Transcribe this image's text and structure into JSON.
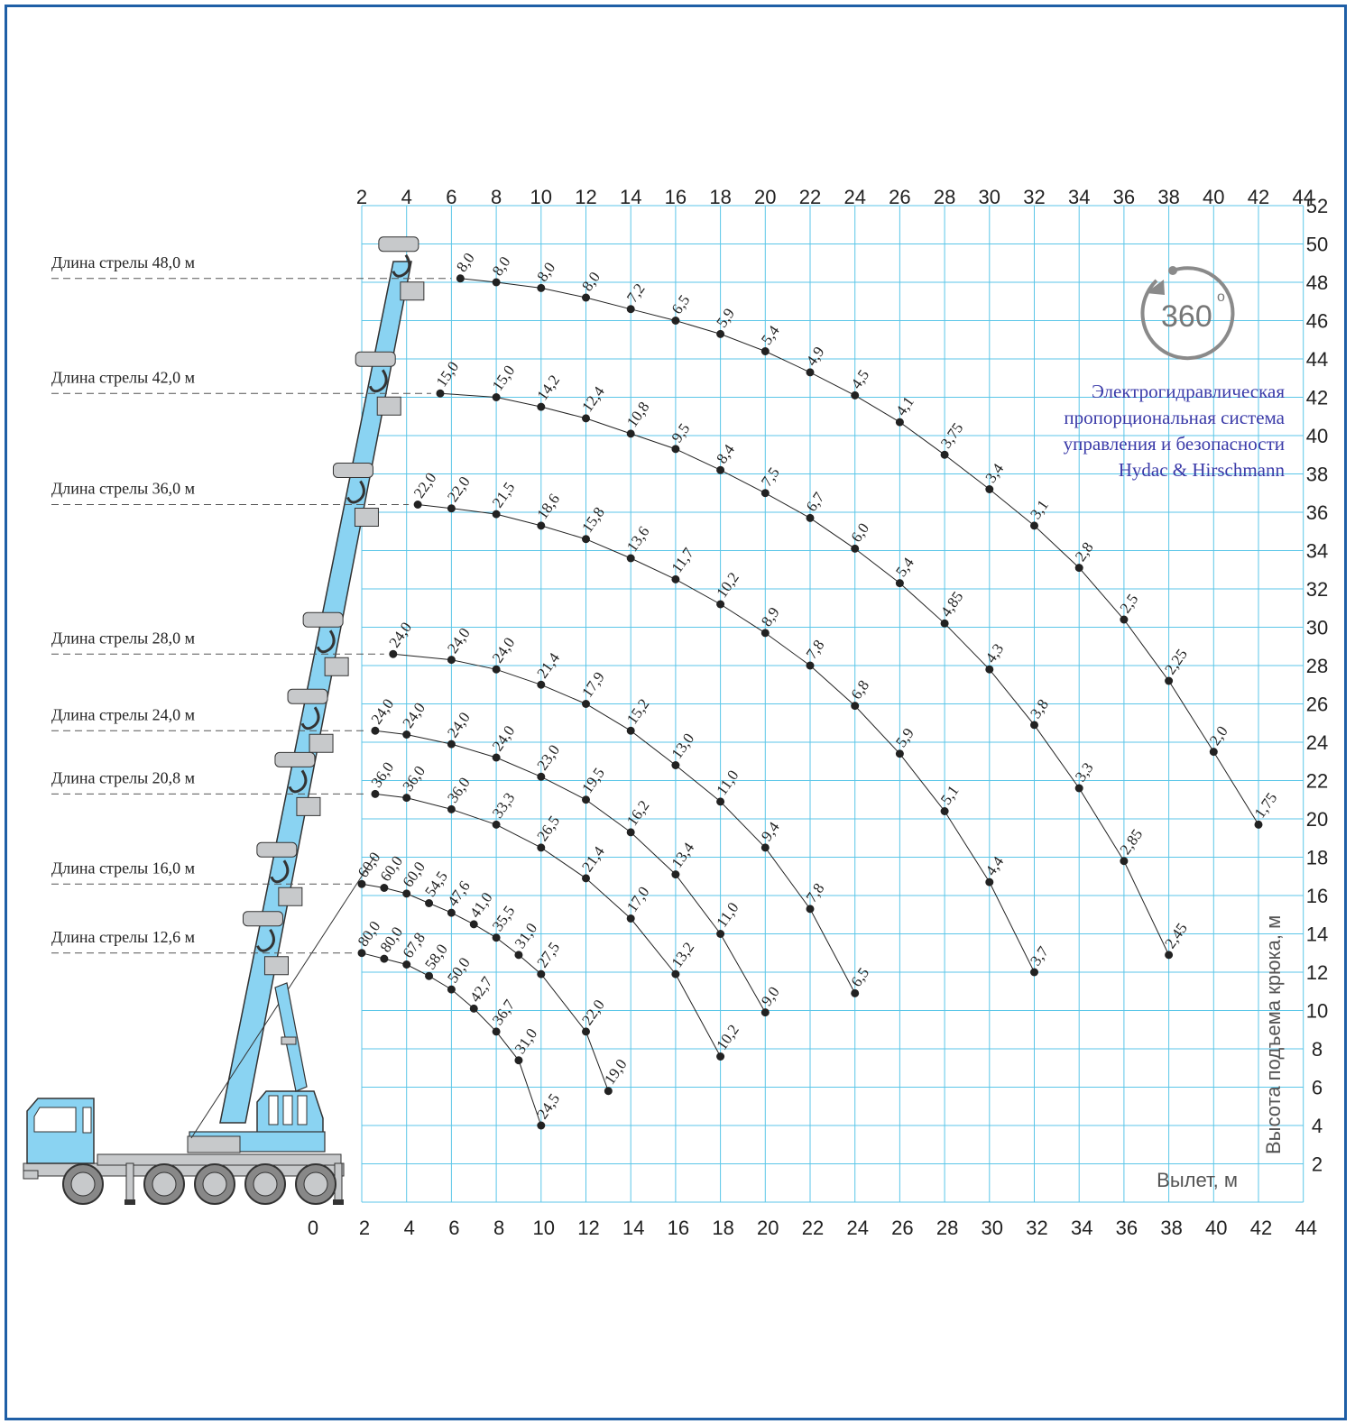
{
  "chart_data": {
    "type": "line",
    "title": "",
    "xlabel": "Вылет, м",
    "ylabel": "Высота подъема крюка, м",
    "xlim": [
      2,
      44
    ],
    "ylim": [
      0,
      52
    ],
    "x_ticks_top": [
      2,
      4,
      6,
      8,
      10,
      12,
      14,
      16,
      18,
      20,
      22,
      24,
      26,
      28,
      30,
      32,
      34,
      36,
      38,
      40,
      42,
      44
    ],
    "x_ticks_bottom": [
      0,
      2,
      4,
      6,
      8,
      10,
      12,
      14,
      16,
      18,
      20,
      22,
      24,
      26,
      28,
      30,
      32,
      34,
      36,
      38,
      40,
      42,
      44
    ],
    "y_ticks": [
      2,
      4,
      6,
      8,
      10,
      12,
      14,
      16,
      18,
      20,
      22,
      24,
      26,
      28,
      30,
      32,
      34,
      36,
      38,
      40,
      42,
      44,
      46,
      48,
      50,
      52
    ],
    "grid": true,
    "series": [
      {
        "name": "Длина стрелы 48,0 м",
        "points": [
          [
            6.4,
            48.2,
            "8,0"
          ],
          [
            8,
            48,
            "8,0"
          ],
          [
            10,
            47.7,
            "8,0"
          ],
          [
            12,
            47.2,
            "8,0"
          ],
          [
            14,
            46.6,
            "7,2"
          ],
          [
            16,
            46,
            "6,5"
          ],
          [
            18,
            45.3,
            "5,9"
          ],
          [
            20,
            44.4,
            "5,4"
          ],
          [
            22,
            43.3,
            "4,9"
          ],
          [
            24,
            42.1,
            "4,5"
          ],
          [
            26,
            40.7,
            "4,1"
          ],
          [
            28,
            39,
            "3,75"
          ],
          [
            30,
            37.2,
            "3,4"
          ],
          [
            32,
            35.3,
            "3,1"
          ],
          [
            34,
            33.1,
            "2,8"
          ],
          [
            36,
            30.4,
            "2,5"
          ],
          [
            38,
            27.2,
            "2,25"
          ],
          [
            40,
            23.5,
            "2,0"
          ],
          [
            42,
            19.7,
            "1,75"
          ]
        ]
      },
      {
        "name": "Длина стрелы 42,0 м",
        "points": [
          [
            5.5,
            42.2,
            "15,0"
          ],
          [
            8,
            42,
            "15,0"
          ],
          [
            10,
            41.5,
            "14,2"
          ],
          [
            12,
            40.9,
            "12,4"
          ],
          [
            14,
            40.1,
            "10,8"
          ],
          [
            16,
            39.3,
            "9,5"
          ],
          [
            18,
            38.2,
            "8,4"
          ],
          [
            20,
            37,
            "7,5"
          ],
          [
            22,
            35.7,
            "6,7"
          ],
          [
            24,
            34.1,
            "6,0"
          ],
          [
            26,
            32.3,
            "5,4"
          ],
          [
            28,
            30.2,
            "4,85"
          ],
          [
            30,
            27.8,
            "4,3"
          ],
          [
            32,
            24.9,
            "3,8"
          ],
          [
            34,
            21.6,
            "3,3"
          ],
          [
            36,
            17.8,
            "2,85"
          ],
          [
            38,
            12.9,
            "2,45"
          ]
        ]
      },
      {
        "name": "Длина стрелы 36,0 м",
        "points": [
          [
            4.5,
            36.4,
            "22,0"
          ],
          [
            6,
            36.2,
            "22,0"
          ],
          [
            8,
            35.9,
            "21,5"
          ],
          [
            10,
            35.3,
            "18,6"
          ],
          [
            12,
            34.6,
            "15,8"
          ],
          [
            14,
            33.6,
            "13,6"
          ],
          [
            16,
            32.5,
            "11,7"
          ],
          [
            18,
            31.2,
            "10,2"
          ],
          [
            20,
            29.7,
            "8,9"
          ],
          [
            22,
            28,
            "7,8"
          ],
          [
            24,
            25.9,
            "6,8"
          ],
          [
            26,
            23.4,
            "5,9"
          ],
          [
            28,
            20.4,
            "5,1"
          ],
          [
            30,
            16.7,
            "4,4"
          ],
          [
            32,
            12,
            "3,7"
          ]
        ]
      },
      {
        "name": "Длина стрелы 28,0 м",
        "points": [
          [
            3.4,
            28.6,
            "24,0"
          ],
          [
            6,
            28.3,
            "24,0"
          ],
          [
            8,
            27.8,
            "24,0"
          ],
          [
            10,
            27,
            "21,4"
          ],
          [
            12,
            26,
            "17,9"
          ],
          [
            14,
            24.6,
            "15,2"
          ],
          [
            16,
            22.8,
            "13,0"
          ],
          [
            18,
            20.9,
            "11,0"
          ],
          [
            20,
            18.5,
            "9,4"
          ],
          [
            22,
            15.3,
            "7,8"
          ],
          [
            24,
            10.9,
            "6,5"
          ]
        ]
      },
      {
        "name": "Длина стрелы 24,0 м",
        "points": [
          [
            2.6,
            24.6,
            "24,0"
          ],
          [
            4,
            24.4,
            "24,0"
          ],
          [
            6,
            23.9,
            "24,0"
          ],
          [
            8,
            23.2,
            "24,0"
          ],
          [
            10,
            22.2,
            "23,0"
          ],
          [
            12,
            21,
            "19,5"
          ],
          [
            14,
            19.3,
            "16,2"
          ],
          [
            16,
            17.1,
            "13,4"
          ],
          [
            18,
            14,
            "11,0"
          ],
          [
            20,
            9.9,
            "9,0"
          ]
        ]
      },
      {
        "name": "Длина стрелы 20,8 м",
        "points": [
          [
            2.6,
            21.3,
            "36,0"
          ],
          [
            4,
            21.1,
            "36,0"
          ],
          [
            6,
            20.5,
            "36,0"
          ],
          [
            8,
            19.7,
            "33,3"
          ],
          [
            10,
            18.5,
            "26,5"
          ],
          [
            12,
            16.9,
            "21,4"
          ],
          [
            14,
            14.8,
            "17,0"
          ],
          [
            16,
            11.9,
            "13,2"
          ],
          [
            18,
            7.6,
            "10,2"
          ]
        ]
      },
      {
        "name": "Длина стрелы 16,0 м",
        "points": [
          [
            2,
            16.6,
            "60,0"
          ],
          [
            3,
            16.4,
            "60,0"
          ],
          [
            4,
            16.1,
            "60,0"
          ],
          [
            5,
            15.6,
            "54,5"
          ],
          [
            6,
            15.1,
            "47,6"
          ],
          [
            7,
            14.5,
            "41,0"
          ],
          [
            8,
            13.8,
            "35,5"
          ],
          [
            9,
            12.9,
            "31,0"
          ],
          [
            10,
            11.9,
            "27,5"
          ],
          [
            12,
            8.9,
            "22,0"
          ],
          [
            13,
            5.8,
            "19,0"
          ]
        ]
      },
      {
        "name": "Длина стрелы 12,6 м",
        "points": [
          [
            2,
            13,
            "80,0"
          ],
          [
            3,
            12.7,
            "80,0"
          ],
          [
            4,
            12.4,
            "67,8"
          ],
          [
            5,
            11.8,
            "58,0"
          ],
          [
            6,
            11.1,
            "50,0"
          ],
          [
            7,
            10.1,
            "42,7"
          ],
          [
            8,
            8.9,
            "36,7"
          ],
          [
            9,
            7.4,
            "31,0"
          ],
          [
            10,
            4,
            "24,5"
          ]
        ]
      }
    ]
  },
  "boom_labels": [
    "Длина стрелы 48,0 м",
    "Длина стрелы 42,0 м",
    "Длина стрелы 36,0 м",
    "Длина стрелы 28,0 м",
    "Длина стрелы 24,0 м",
    "Длина стрелы 20,8 м",
    "Длина стрелы 16,0 м",
    "Длина стрелы 12,6 м"
  ],
  "badge": {
    "text": "360",
    "deg": "o"
  },
  "note_lines": [
    "Электрогидравлическая",
    "пропорциональная система",
    "управления и безопасности",
    "Hydac & Hirschmann"
  ],
  "colors": {
    "grid": "#5bc6e8",
    "boom": "#8ad3f2",
    "frame": "#1f5fa6",
    "note": "#3a3aa8",
    "truck_cab": "#8ad3f2",
    "metal": "#c7c9cb"
  }
}
